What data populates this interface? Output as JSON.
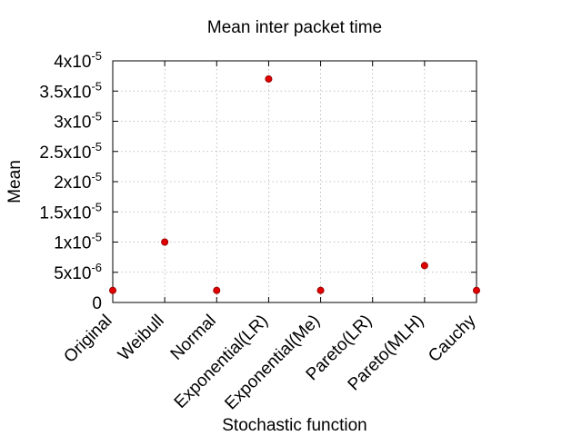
{
  "chart_data": {
    "type": "scatter",
    "title": "Mean inter packet time",
    "xlabel": "Stochastic function",
    "ylabel": "Mean",
    "categories": [
      "Original",
      "Weibull",
      "Normal",
      "Exponential(LR)",
      "Exponential(Me)",
      "Pareto(LR)",
      "Pareto(MLH)",
      "Cauchy"
    ],
    "ylim": [
      0,
      4e-05
    ],
    "yticks": [
      0,
      5e-06,
      1e-05,
      1.5e-05,
      2e-05,
      2.5e-05,
      3e-05,
      3.5e-05,
      4e-05
    ],
    "ytick_labels": [
      {
        "mantissa": "0",
        "exp": ""
      },
      {
        "mantissa": "5x10",
        "exp": "-6"
      },
      {
        "mantissa": "1x10",
        "exp": "-5"
      },
      {
        "mantissa": "1.5x10",
        "exp": "-5"
      },
      {
        "mantissa": "2x10",
        "exp": "-5"
      },
      {
        "mantissa": "2.5x10",
        "exp": "-5"
      },
      {
        "mantissa": "3x10",
        "exp": "-5"
      },
      {
        "mantissa": "3.5x10",
        "exp": "-5"
      },
      {
        "mantissa": "4x10",
        "exp": "-5"
      }
    ],
    "x_positions": [
      0,
      1,
      2,
      3,
      4,
      6,
      7
    ],
    "xlim": [
      0,
      7
    ],
    "values": [
      2e-06,
      1e-05,
      2e-06,
      3.7e-05,
      2e-06,
      6.1e-06,
      2e-06
    ],
    "grid": true,
    "point_color": "#e00000"
  }
}
